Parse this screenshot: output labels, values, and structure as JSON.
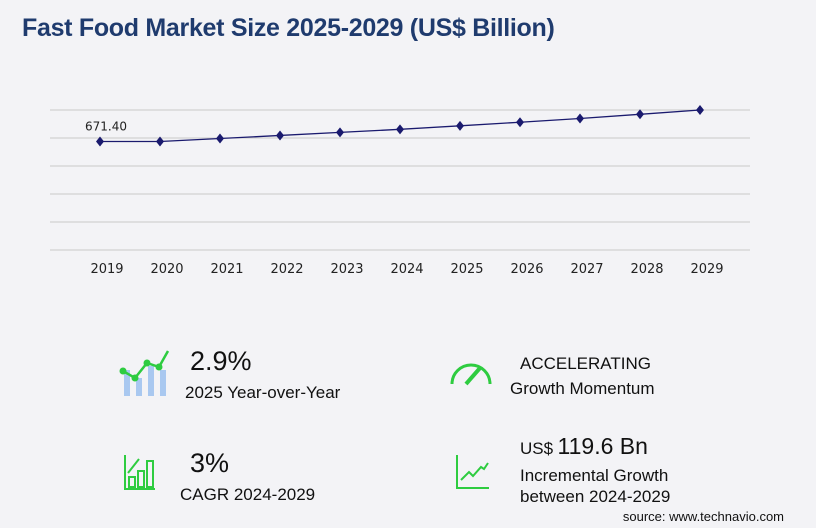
{
  "title": "Fast Food Market Size 2025-2029 (US$ Billion)",
  "chart_data": {
    "type": "line",
    "title": "Fast Food Market Size 2025-2029 (US$ Billion)",
    "categories": [
      "2019",
      "2020",
      "2021",
      "2022",
      "2023",
      "2024",
      "2025",
      "2026",
      "2027",
      "2028",
      "2029"
    ],
    "values": [
      671.4,
      671.4,
      690,
      709,
      728,
      747,
      768.7,
      791,
      814,
      840,
      866.6
    ],
    "data_labels": {
      "2019": "671.40"
    },
    "ylim": [
      0,
      866.6
    ],
    "grid": true,
    "line_color": "#1a1a6e",
    "marker": "diamond"
  },
  "stats": {
    "yoy_value": "2.9%",
    "yoy_label": "2025 Year-over-Year",
    "momentum_value": "ACCELERATING",
    "momentum_label": "Growth Momentum",
    "cagr_value": "3%",
    "cagr_label": "CAGR 2024-2029",
    "incr_prefix": "US$",
    "incr_value": "119.6 Bn",
    "incr_label1": "Incremental Growth",
    "incr_label2": "between 2024-2029"
  },
  "colors": {
    "accent_green": "#2ecc40",
    "bar_blue": "#a9c8f0",
    "title": "#1f3b6e"
  },
  "source": "source: www.technavio.com"
}
